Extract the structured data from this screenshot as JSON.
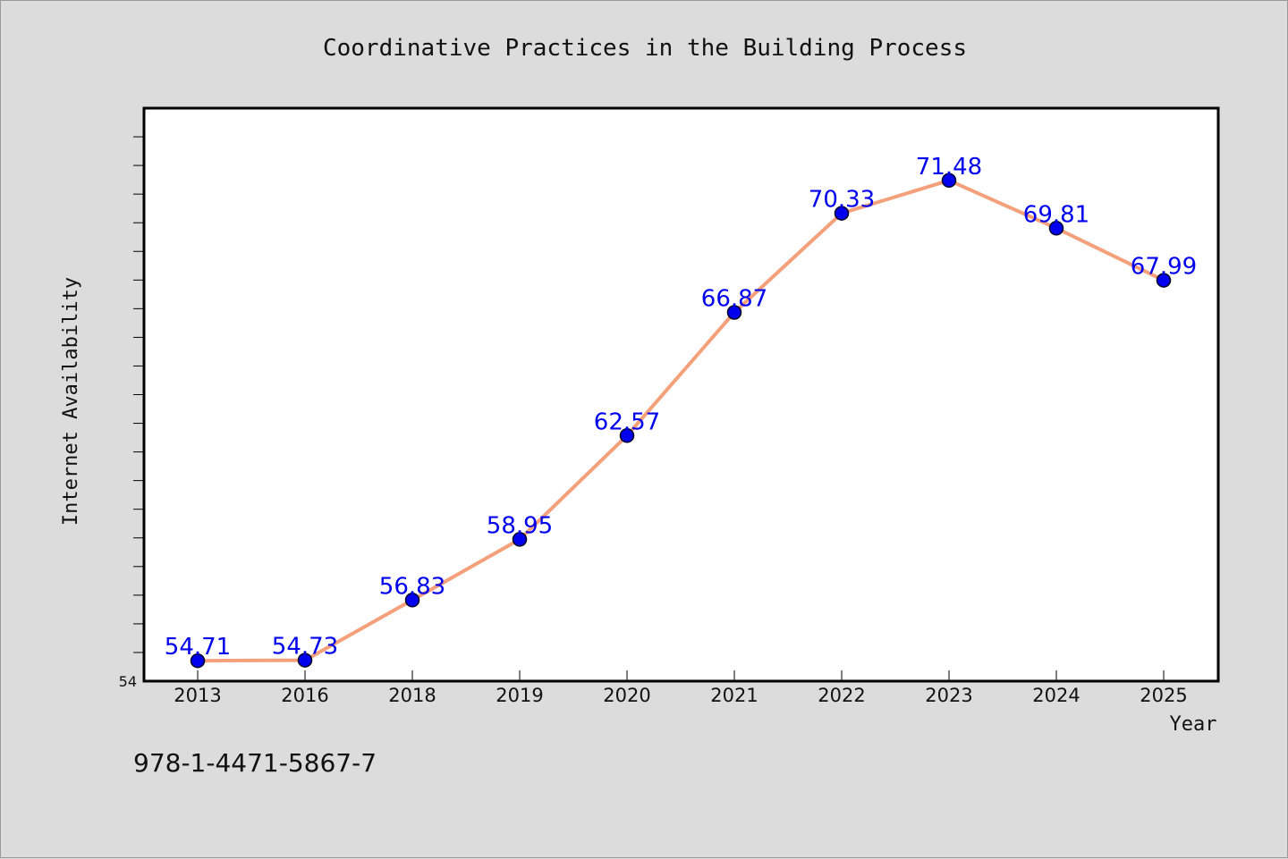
{
  "chart_data": {
    "type": "line",
    "title": "Coordinative Practices in the Building Process",
    "xlabel": "Year",
    "ylabel": "Internet Availability",
    "categories": [
      "2013",
      "2016",
      "2018",
      "2019",
      "2020",
      "2021",
      "2022",
      "2023",
      "2024",
      "2025"
    ],
    "series": [
      {
        "values": [
          54.71,
          54.73,
          56.83,
          58.95,
          62.57,
          66.87,
          70.33,
          71.48,
          69.81,
          67.99
        ]
      }
    ],
    "data_labels": [
      "54.71",
      "54.73",
      "56.83",
      "58.95",
      "62.57",
      "66.87",
      "70.33",
      "71.48",
      "69.81",
      "67.99"
    ],
    "ylim": [
      54,
      74
    ],
    "y_tick_labels": [
      "54"
    ],
    "grid": false,
    "legend": "none",
    "line_color": "#f4a07a",
    "marker_color": "#0000ee",
    "plot_background": "#ffffff",
    "figure_background": "#dcdcdc"
  },
  "footer": {
    "isbn": "978-1-4471-5867-7"
  }
}
